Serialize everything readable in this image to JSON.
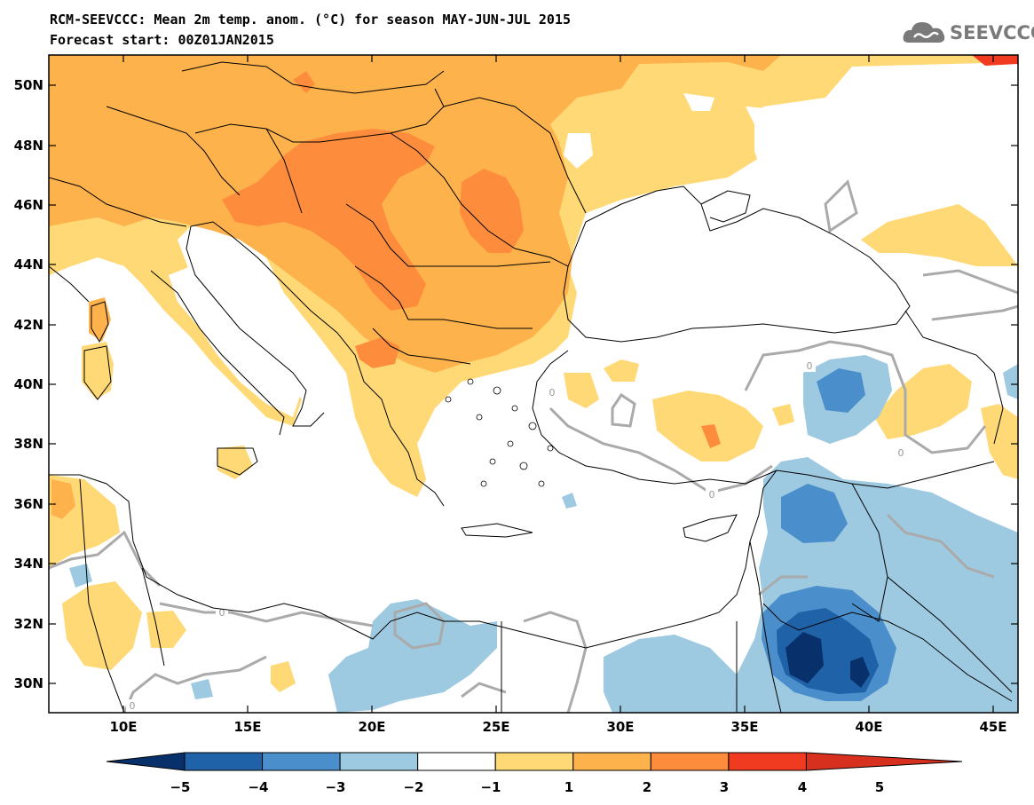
{
  "header": {
    "title_line1": "RCM-SEEVCCC: Mean 2m temp. anom. (°C) for season MAY-JUN-JUL 2015",
    "title_line2": "Forecast start: 00Z01JAN2015",
    "logo_text": "SEEVCCC",
    "logo_icon": "cloud-icon"
  },
  "map": {
    "lon_range": [
      7,
      46
    ],
    "lat_range": [
      29,
      51
    ],
    "lat_ticks": [
      "50N",
      "48N",
      "46N",
      "44N",
      "42N",
      "40N",
      "38N",
      "36N",
      "34N",
      "32N",
      "30N"
    ],
    "lon_ticks": [
      "10E",
      "15E",
      "20E",
      "25E",
      "30E",
      "35E",
      "40E",
      "45E"
    ],
    "contour_label": "0",
    "colors": {
      "cold5": "#08306b",
      "cold4": "#1f62a8",
      "cold3": "#4a8fcb",
      "cold2": "#9ecae1",
      "neutral": "#ffffff",
      "warm1": "#fed976",
      "warm2": "#feb24c",
      "warm3": "#fd8d3c",
      "warm4": "#f03b20",
      "warm5": "#d7301f",
      "contour": "#aaaaaa",
      "border": "#000000"
    }
  },
  "colorbar": {
    "labels": [
      "-5",
      "-4",
      "-3",
      "-2",
      "-1",
      "1",
      "2",
      "3",
      "4",
      "5"
    ],
    "colors": [
      "#08306b",
      "#1f62a8",
      "#4a8fcb",
      "#9ecae1",
      "#ffffff",
      "#fed976",
      "#feb24c",
      "#fd8d3c",
      "#f03b20",
      "#d7301f"
    ]
  }
}
